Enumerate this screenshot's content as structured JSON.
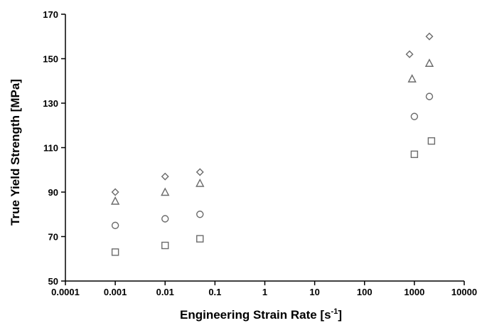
{
  "chart_data": {
    "type": "scatter",
    "title": "",
    "xlabel": "Engineering Strain Rate [s",
    "xlabel_sup": "-1",
    "xlabel_end": "]",
    "ylabel": "True Yield Strength [MPa]",
    "x_scale": "log",
    "xlim": [
      0.0001,
      10000
    ],
    "ylim": [
      50,
      170
    ],
    "x_ticks": [
      0.0001,
      0.001,
      0.01,
      0.1,
      1,
      10,
      100,
      1000,
      10000
    ],
    "x_tick_labels": [
      "0.0001",
      "0.001",
      "0.01",
      "0.1",
      "1",
      "10",
      "100",
      "1000",
      "10000"
    ],
    "y_ticks": [
      50,
      70,
      90,
      110,
      130,
      150,
      170
    ],
    "y_tick_labels": [
      "50",
      "70",
      "90",
      "110",
      "130",
      "150",
      "170"
    ],
    "grid": false,
    "legend": "none",
    "marker_color": "#6b6b6b",
    "series": [
      {
        "marker": "diamond",
        "points": [
          [
            0.001,
            90
          ],
          [
            0.01,
            97
          ],
          [
            0.05,
            99
          ],
          [
            800,
            152
          ],
          [
            2000,
            160
          ]
        ]
      },
      {
        "marker": "triangle",
        "points": [
          [
            0.001,
            86
          ],
          [
            0.01,
            90
          ],
          [
            0.05,
            94
          ],
          [
            900,
            141
          ],
          [
            2000,
            148
          ]
        ]
      },
      {
        "marker": "circle",
        "points": [
          [
            0.001,
            75
          ],
          [
            0.01,
            78
          ],
          [
            0.05,
            80
          ],
          [
            1000,
            124
          ],
          [
            2000,
            133
          ]
        ]
      },
      {
        "marker": "square",
        "points": [
          [
            0.001,
            63
          ],
          [
            0.01,
            66
          ],
          [
            0.05,
            69
          ],
          [
            1000,
            107
          ],
          [
            2200,
            113
          ]
        ]
      }
    ]
  }
}
